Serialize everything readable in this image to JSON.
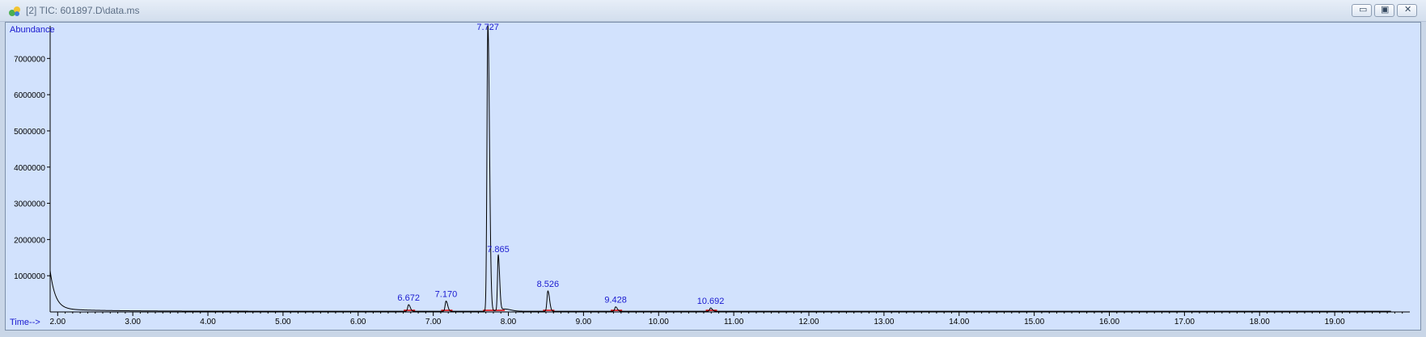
{
  "window": {
    "title": "[2] TIC: 601897.D\\data.ms",
    "app_icon": "chromatogram-app-icon",
    "controls": [
      "minimize-icon",
      "restore-icon",
      "close-icon"
    ]
  },
  "colors": {
    "plot_background": "#d2e2fd",
    "trace": "#000000",
    "peak_label": "#1a1ad0",
    "integration_mark": "#e00000",
    "axis": "#000000"
  },
  "chart_data": {
    "type": "line",
    "xlabel": "Time-->",
    "ylabel": "Abundance",
    "xlim": [
      1.9,
      20.0
    ],
    "ylim": [
      0,
      7900000
    ],
    "x_ticks": [
      2.0,
      3.0,
      4.0,
      5.0,
      6.0,
      7.0,
      8.0,
      9.0,
      10.0,
      11.0,
      12.0,
      13.0,
      14.0,
      15.0,
      16.0,
      17.0,
      18.0,
      19.0
    ],
    "x_tick_labels": [
      "2.00",
      "3.00",
      "4.00",
      "5.00",
      "6.00",
      "7.00",
      "8.00",
      "9.00",
      "10.00",
      "11.00",
      "12.00",
      "13.00",
      "14.00",
      "15.00",
      "16.00",
      "17.00",
      "18.00",
      "19.00"
    ],
    "y_ticks": [
      1000000,
      2000000,
      3000000,
      4000000,
      5000000,
      6000000,
      7000000
    ],
    "y_tick_labels": [
      "1000000",
      "2000000",
      "3000000",
      "4000000",
      "5000000",
      "6000000",
      "7000000"
    ],
    "grid": false,
    "peaks": [
      {
        "rt": 6.672,
        "label": "6.672",
        "height": 180000
      },
      {
        "rt": 7.17,
        "label": "7.170",
        "height": 280000
      },
      {
        "rt": 7.727,
        "label": "7.727",
        "height": 7900000
      },
      {
        "rt": 7.865,
        "label": "7.865",
        "height": 1520000
      },
      {
        "rt": 8.526,
        "label": "8.526",
        "height": 560000
      },
      {
        "rt": 9.428,
        "label": "9.428",
        "height": 120000
      },
      {
        "rt": 10.692,
        "label": "10.692",
        "height": 90000
      }
    ],
    "initial_decay": {
      "start_rt": 1.9,
      "start_value": 1050000
    }
  }
}
